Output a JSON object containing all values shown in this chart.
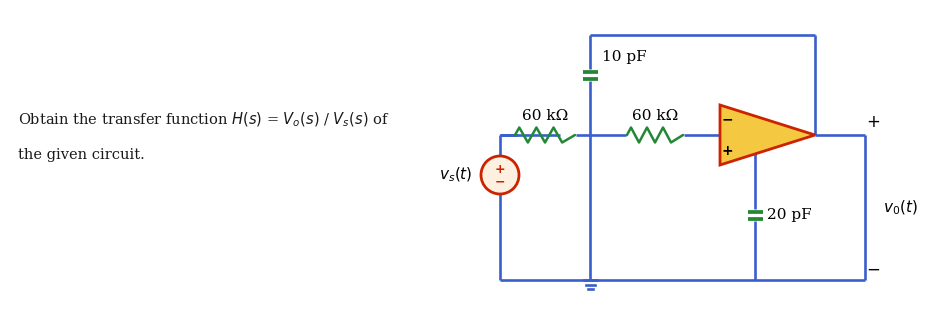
{
  "background": "#ffffff",
  "wire_color": "#3a5fcd",
  "resistor_color": "#228833",
  "capacitor_color": "#228833",
  "opamp_fill": "#f5c842",
  "opamp_edge": "#cc2200",
  "source_edge": "#cc2200",
  "source_fill": "#fdf0e0",
  "label_color": "#333333",
  "label_10pF": "10 pF",
  "label_20pF": "20 pF",
  "label_60k1": "60 kΩ",
  "label_60k2": "60 kΩ",
  "figsize": [
    9.29,
    3.35
  ],
  "dpi": 100
}
